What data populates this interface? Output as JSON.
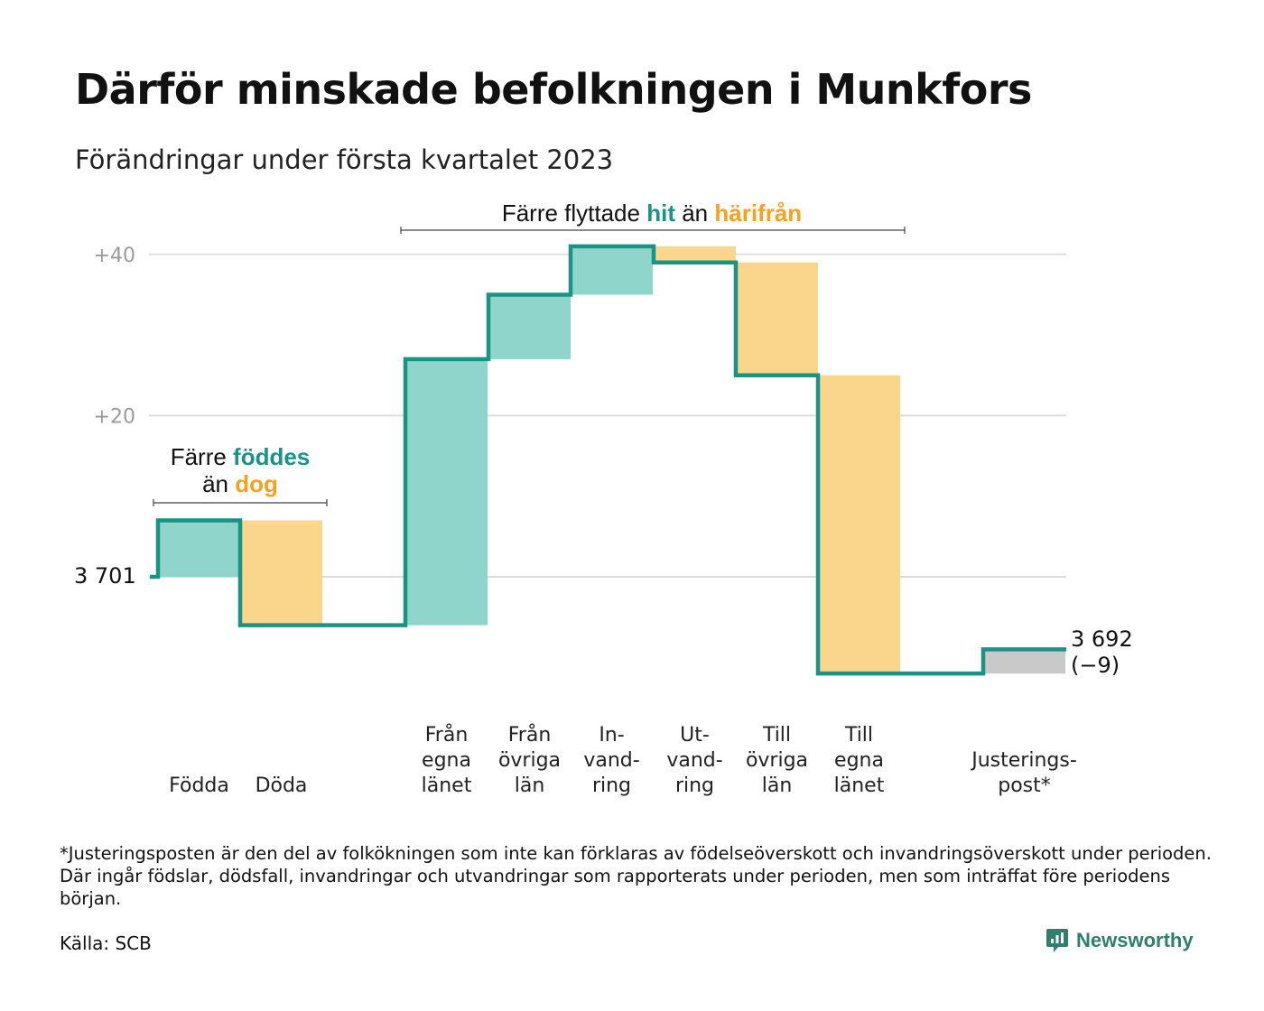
{
  "title": "Därför minskade befolkningen i Munkfors",
  "subtitle": "Förändringar under första kvartalet 2023",
  "colors": {
    "teal_line": "#1a9384",
    "teal_fill": "#8fd5cb",
    "orange_fill": "#fad58c",
    "orange_text": "#f5a122",
    "gray_fill": "#c9c9c9",
    "grid": "#dddddd"
  },
  "chart_data": {
    "type": "waterfall",
    "start_value": 3701,
    "end_value": 3692,
    "y_ticks": [
      {
        "label": "+40",
        "value": 40
      },
      {
        "label": "+20",
        "value": 20
      }
    ],
    "steps": [
      {
        "label": [
          "Födda"
        ],
        "value": 7,
        "kind": "in"
      },
      {
        "label": [
          "Döda"
        ],
        "value": -13,
        "kind": "out"
      },
      {
        "label": [
          "Från",
          "egna",
          "länet"
        ],
        "value": 33,
        "kind": "in"
      },
      {
        "label": [
          "Från",
          "övriga",
          "län"
        ],
        "value": 8,
        "kind": "in"
      },
      {
        "label": [
          "In-",
          "vand-",
          "ring"
        ],
        "value": 6,
        "kind": "in"
      },
      {
        "label": [
          "Ut-",
          "vand-",
          "ring"
        ],
        "value": -2,
        "kind": "out"
      },
      {
        "label": [
          "Till",
          "övriga",
          "län"
        ],
        "value": -14,
        "kind": "out"
      },
      {
        "label": [
          "Till",
          "egna",
          "länet"
        ],
        "value": -37,
        "kind": "out"
      },
      {
        "label": [
          "Justerings-",
          "post*"
        ],
        "value": 3,
        "kind": "adjust"
      }
    ],
    "start_label": "3 701",
    "end_label_value": "3 692",
    "end_label_change": "(−9)",
    "annotations": {
      "births": {
        "line1_pre": "Färre ",
        "line1_hl": "föddes",
        "line2_pre": "än ",
        "line2_hl": "dog"
      },
      "migration": {
        "pre": "Färre flyttade ",
        "hl1": "hit",
        "mid": " än ",
        "hl2": "härifrån"
      }
    }
  },
  "footnote": "*Justeringsposten är den del av folkökningen som inte kan förklaras av födelseöverskott och invandringsöverskott under perioden. Där ingår födslar, dödsfall, invandringar och utvandringar som rapporterats under perioden, men som inträffat före periodens början.",
  "source": "Källa: SCB",
  "brand": {
    "name": "Newsworthy",
    "icon": "newsworthy-logo-icon"
  }
}
